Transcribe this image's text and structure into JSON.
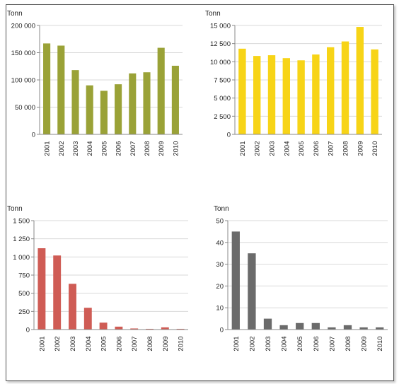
{
  "chart_data": [
    {
      "type": "bar",
      "unit_label": "Tonn",
      "color": "#9aa237",
      "categories": [
        "2001",
        "2002",
        "2003",
        "2004",
        "2005",
        "2006",
        "2007",
        "2008",
        "2009",
        "2010"
      ],
      "values": [
        167000,
        163000,
        118000,
        90000,
        80000,
        92000,
        112000,
        114000,
        159000,
        126000
      ],
      "ylim": [
        0,
        200000
      ],
      "yticks": [
        0,
        50000,
        100000,
        150000,
        200000
      ],
      "ytick_labels": [
        "0",
        "50 000",
        "100 000",
        "150 000",
        "200 000"
      ],
      "grid": true
    },
    {
      "type": "bar",
      "unit_label": "Tonn",
      "color": "#f7d417",
      "categories": [
        "2001",
        "2002",
        "2003",
        "2004",
        "2005",
        "2006",
        "2007",
        "2008",
        "2009",
        "2010"
      ],
      "values": [
        11800,
        10800,
        10900,
        10500,
        10200,
        11000,
        12000,
        12800,
        14800,
        11700
      ],
      "ylim": [
        0,
        15000
      ],
      "yticks": [
        0,
        2500,
        5000,
        7500,
        10000,
        12500,
        15000
      ],
      "ytick_labels": [
        "0",
        "2 500",
        "5 000",
        "7 500",
        "10 000",
        "12 500",
        "15 000"
      ],
      "grid": true
    },
    {
      "type": "bar",
      "unit_label": "Tonn",
      "color": "#cf5c55",
      "categories": [
        "2001",
        "2002",
        "2003",
        "2004",
        "2005",
        "2006",
        "2007",
        "2008",
        "2009",
        "2010"
      ],
      "values": [
        1120,
        1020,
        630,
        300,
        95,
        40,
        15,
        10,
        30,
        10
      ],
      "ylim": [
        0,
        1500
      ],
      "yticks": [
        0,
        250,
        500,
        750,
        1000,
        1250,
        1500
      ],
      "ytick_labels": [
        "0",
        "250",
        "500",
        "750",
        "1 000",
        "1 250",
        "1 500"
      ],
      "grid": true
    },
    {
      "type": "bar",
      "unit_label": "Tonn",
      "color": "#6b6b6b",
      "categories": [
        "2001",
        "2002",
        "2003",
        "2004",
        "2005",
        "2006",
        "2007",
        "2008",
        "2009",
        "2010"
      ],
      "values": [
        45,
        35,
        5,
        2,
        3,
        3,
        1,
        2,
        1,
        1
      ],
      "ylim": [
        0,
        50
      ],
      "yticks": [
        0,
        10,
        20,
        30,
        40,
        50
      ],
      "ytick_labels": [
        "0",
        "10",
        "20",
        "30",
        "40",
        "50"
      ],
      "grid": true
    }
  ]
}
